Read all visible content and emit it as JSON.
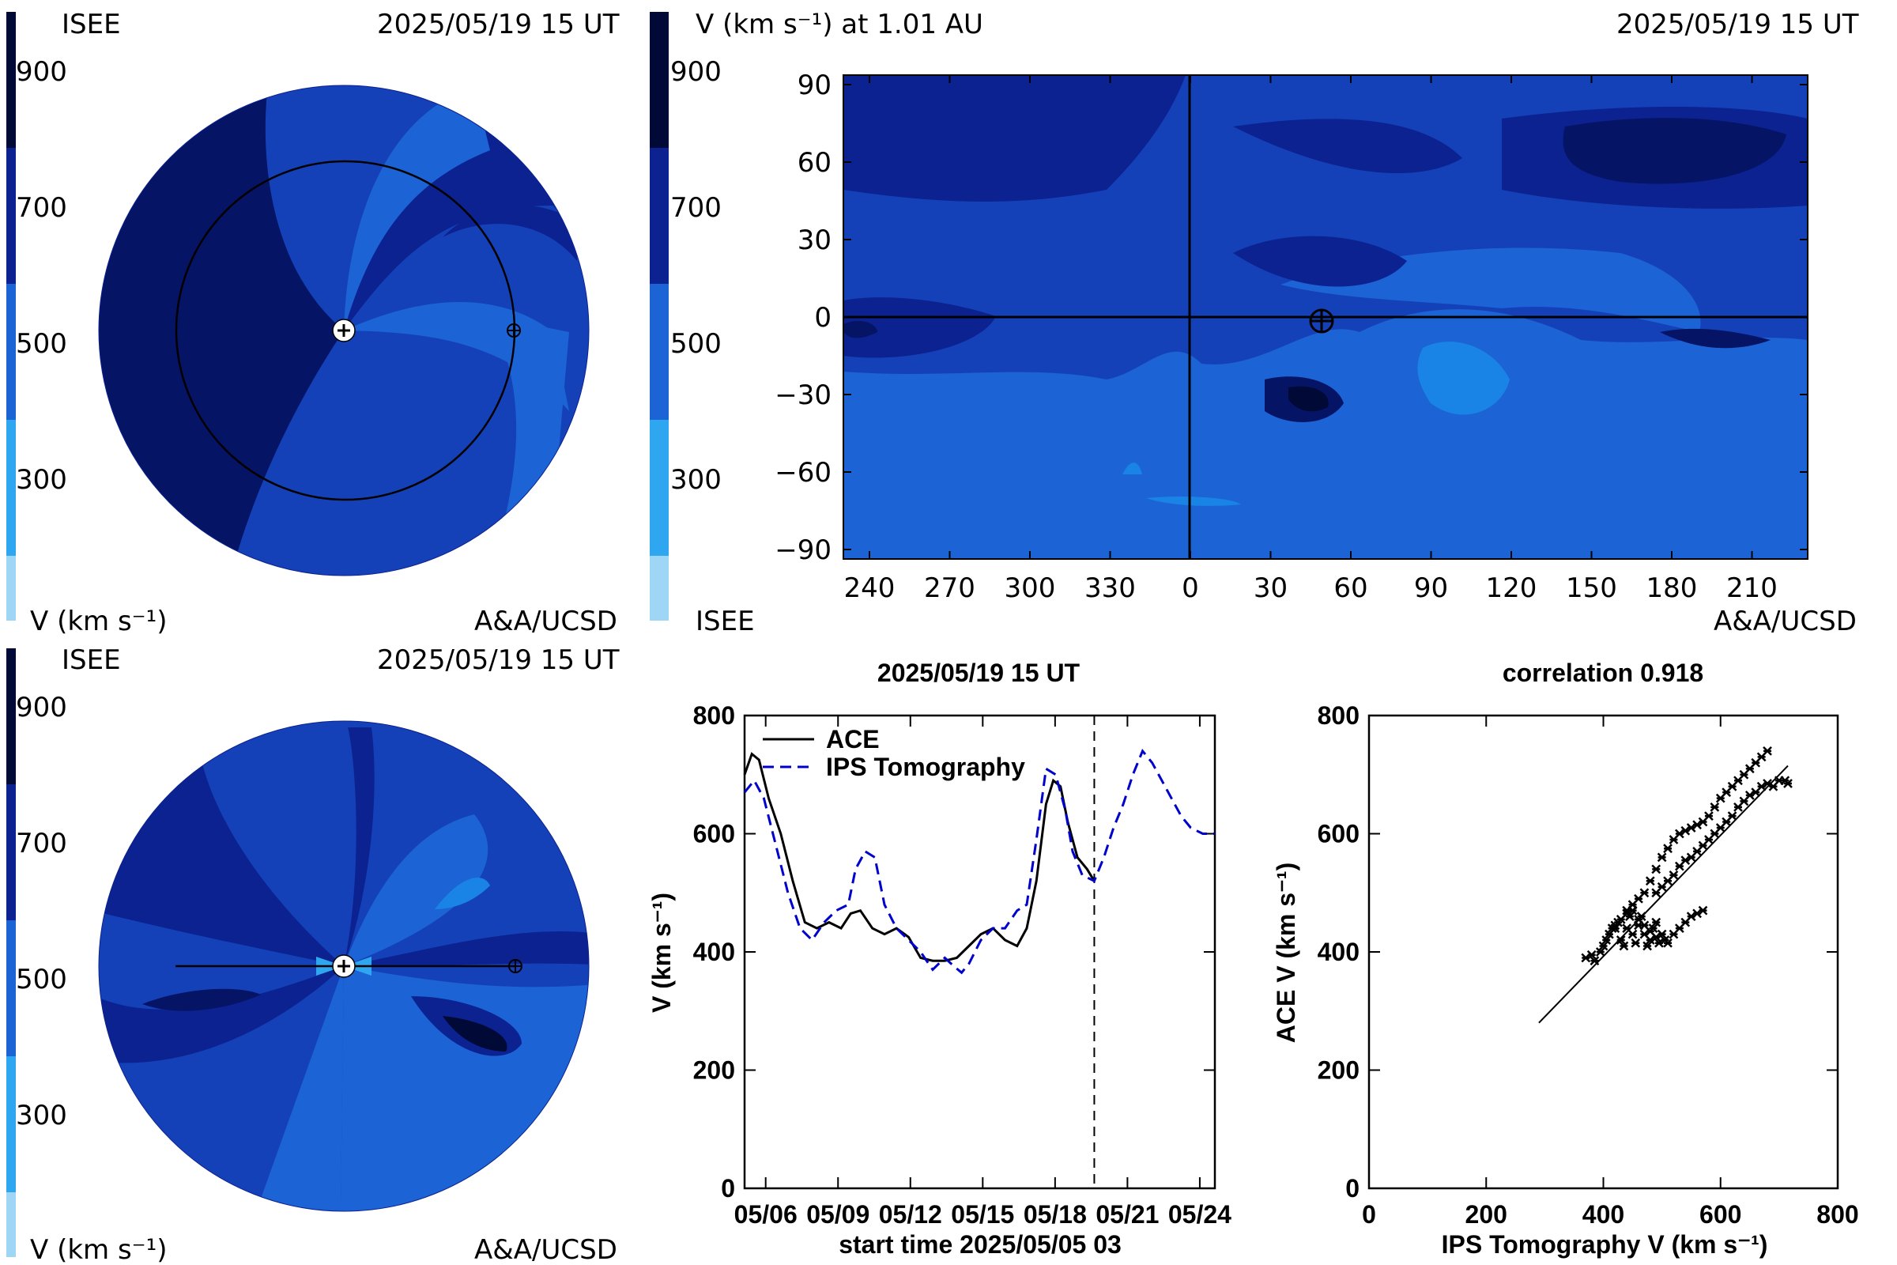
{
  "colors": {
    "scale": [
      "#9fd6f5",
      "#2ea7f0",
      "#1a84e6",
      "#1c63d6",
      "#1541b8",
      "#0b2290",
      "#061466",
      "#010a36"
    ],
    "ace": "#000000",
    "ips": "#0000cc",
    "plot_bg": "#ffffff"
  },
  "panels": {
    "ecliptic": {
      "left_label": "ISEE",
      "date": "2025/05/19 15 UT",
      "units": "V (km s⁻¹)",
      "credit": "A&A/UCSD",
      "scale_ticks": [
        "900",
        "700",
        "500",
        "300"
      ]
    },
    "meridional": {
      "left_label": "ISEE",
      "date": "2025/05/19 15 UT",
      "units": "V (km s⁻¹)",
      "credit": "A&A/UCSD",
      "scale_ticks": [
        "900",
        "700",
        "500",
        "300"
      ]
    },
    "synoptic": {
      "title": "V (km s⁻¹) at 1.01 AU",
      "date": "2025/05/19 15 UT",
      "left_label": "ISEE",
      "credit": "A&A/UCSD",
      "scale_ticks": [
        "900",
        "700",
        "500",
        "300"
      ],
      "x_ticks": [
        "240",
        "270",
        "300",
        "330",
        "0",
        "30",
        "60",
        "90",
        "120",
        "150",
        "180",
        "210"
      ],
      "y_ticks": [
        "90",
        "60",
        "30",
        "0",
        "−30",
        "−60",
        "−90"
      ]
    }
  },
  "chart_data": [
    {
      "type": "line",
      "title": "2025/05/19 15 UT",
      "xlabel": "start time 2025/05/05 03",
      "ylabel": "V (km s⁻¹)",
      "x_tick_labels": [
        "05/06",
        "05/09",
        "05/12",
        "05/15",
        "05/18",
        "05/21",
        "05/24"
      ],
      "x_tick_days": [
        0.875,
        3.875,
        6.875,
        9.875,
        12.875,
        15.875,
        18.875
      ],
      "xlim": [
        0,
        19.5
      ],
      "ylim": [
        0,
        800
      ],
      "y_ticks": [
        "800",
        "600",
        "400",
        "200",
        "0"
      ],
      "now_marker_day": 14.5,
      "legend": [
        "ACE",
        "IPS Tomography"
      ],
      "legend_position": "top-left",
      "series": [
        {
          "name": "ACE",
          "style": "solid",
          "x": [
            0,
            0.3,
            0.6,
            1.0,
            1.5,
            2.0,
            2.5,
            3.0,
            3.5,
            4.0,
            4.4,
            4.8,
            5.3,
            5.8,
            6.3,
            6.8,
            7.3,
            7.8,
            8.3,
            8.8,
            9.3,
            9.8,
            10.3,
            10.8,
            11.3,
            11.7,
            12.1,
            12.5,
            12.8,
            13.1,
            13.4,
            13.8,
            14.2,
            14.5
          ],
          "y": [
            700,
            735,
            725,
            660,
            600,
            520,
            450,
            440,
            450,
            440,
            465,
            470,
            440,
            430,
            440,
            425,
            390,
            385,
            385,
            390,
            410,
            430,
            440,
            420,
            410,
            440,
            520,
            650,
            690,
            680,
            620,
            560,
            540,
            520
          ]
        },
        {
          "name": "IPS Tomography",
          "style": "dashed",
          "x": [
            0,
            0.4,
            0.8,
            1.3,
            1.8,
            2.3,
            2.8,
            3.3,
            3.8,
            4.3,
            4.6,
            5.0,
            5.4,
            5.8,
            6.3,
            6.8,
            7.3,
            7.8,
            8.3,
            8.7,
            9.0,
            9.3,
            9.8,
            10.3,
            10.8,
            11.3,
            11.7,
            12.1,
            12.5,
            12.9,
            13.3,
            13.6,
            14.0,
            14.5,
            14.9,
            15.3,
            15.7,
            16.1,
            16.5,
            16.9,
            17.3,
            17.7,
            18.1,
            18.5,
            19.0,
            19.5
          ],
          "y": [
            670,
            690,
            660,
            580,
            500,
            440,
            420,
            450,
            470,
            480,
            540,
            570,
            560,
            480,
            440,
            420,
            400,
            370,
            390,
            375,
            365,
            380,
            420,
            440,
            440,
            470,
            480,
            590,
            710,
            700,
            640,
            570,
            530,
            520,
            560,
            610,
            650,
            700,
            740,
            720,
            690,
            660,
            630,
            610,
            600,
            600
          ]
        }
      ]
    },
    {
      "type": "scatter",
      "title": "correlation 0.918",
      "xlabel": "IPS Tomography V (km s⁻¹)",
      "ylabel": "ACE V (km s⁻¹)",
      "xlim": [
        0,
        800
      ],
      "ylim": [
        0,
        800
      ],
      "x_ticks": [
        "0",
        "200",
        "400",
        "600",
        "800"
      ],
      "y_ticks": [
        "800",
        "600",
        "400",
        "200",
        "0"
      ],
      "fit_line": [
        [
          290,
          280
        ],
        [
          715,
          715
        ]
      ],
      "points": [
        [
          370,
          390
        ],
        [
          380,
          395
        ],
        [
          385,
          385
        ],
        [
          395,
          400
        ],
        [
          400,
          410
        ],
        [
          405,
          420
        ],
        [
          410,
          430
        ],
        [
          415,
          440
        ],
        [
          420,
          445
        ],
        [
          425,
          450
        ],
        [
          430,
          420
        ],
        [
          435,
          410
        ],
        [
          440,
          440
        ],
        [
          445,
          460
        ],
        [
          450,
          430
        ],
        [
          455,
          415
        ],
        [
          460,
          445
        ],
        [
          465,
          460
        ],
        [
          470,
          430
        ],
        [
          475,
          410
        ],
        [
          480,
          420
        ],
        [
          485,
          440
        ],
        [
          490,
          450
        ],
        [
          500,
          430
        ],
        [
          510,
          415
        ],
        [
          520,
          430
        ],
        [
          530,
          440
        ],
        [
          540,
          450
        ],
        [
          550,
          460
        ],
        [
          560,
          465
        ],
        [
          570,
          470
        ],
        [
          440,
          470
        ],
        [
          450,
          480
        ],
        [
          460,
          490
        ],
        [
          470,
          500
        ],
        [
          480,
          520
        ],
        [
          490,
          540
        ],
        [
          500,
          560
        ],
        [
          510,
          575
        ],
        [
          520,
          590
        ],
        [
          530,
          600
        ],
        [
          540,
          605
        ],
        [
          550,
          610
        ],
        [
          560,
          615
        ],
        [
          570,
          620
        ],
        [
          580,
          630
        ],
        [
          590,
          645
        ],
        [
          600,
          660
        ],
        [
          610,
          670
        ],
        [
          620,
          680
        ],
        [
          630,
          690
        ],
        [
          640,
          700
        ],
        [
          650,
          710
        ],
        [
          660,
          720
        ],
        [
          670,
          730
        ],
        [
          680,
          740
        ],
        [
          490,
          500
        ],
        [
          500,
          510
        ],
        [
          510,
          520
        ],
        [
          520,
          530
        ],
        [
          530,
          545
        ],
        [
          540,
          555
        ],
        [
          550,
          560
        ],
        [
          560,
          570
        ],
        [
          570,
          580
        ],
        [
          580,
          590
        ],
        [
          590,
          600
        ],
        [
          600,
          610
        ],
        [
          610,
          620
        ],
        [
          620,
          630
        ],
        [
          630,
          645
        ],
        [
          640,
          655
        ],
        [
          650,
          665
        ],
        [
          660,
          670
        ],
        [
          670,
          680
        ],
        [
          680,
          685
        ],
        [
          690,
          680
        ],
        [
          700,
          690
        ],
        [
          710,
          690
        ],
        [
          715,
          685
        ],
        [
          420,
          440
        ],
        [
          430,
          455
        ],
        [
          440,
          465
        ],
        [
          450,
          470
        ],
        [
          460,
          455
        ],
        [
          470,
          445
        ],
        [
          480,
          435
        ],
        [
          490,
          425
        ],
        [
          495,
          415
        ],
        [
          505,
          420
        ]
      ]
    }
  ]
}
